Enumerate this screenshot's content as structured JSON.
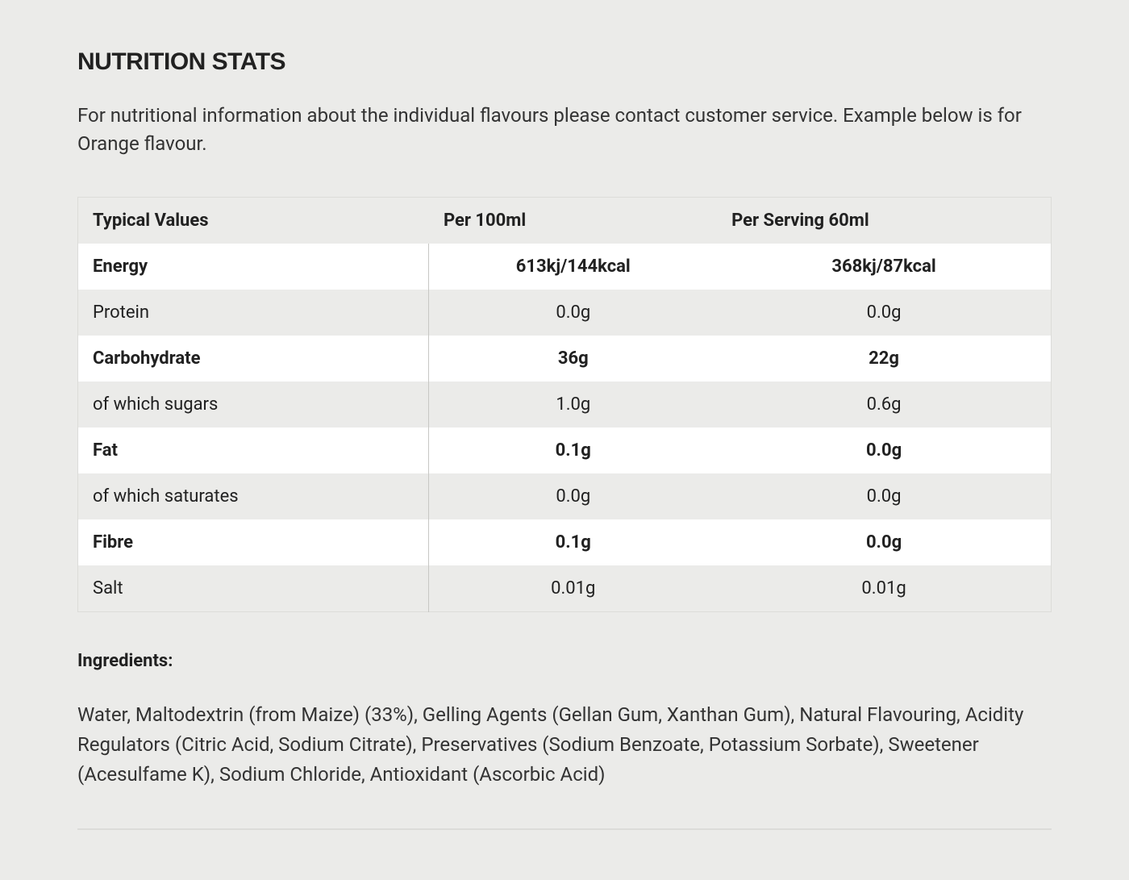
{
  "title": "NUTRITION STATS",
  "intro": "For nutritional information about the individual flavours please contact customer service. Example below is for Orange flavour.",
  "table": {
    "columns": [
      "Typical Values",
      "Per 100ml",
      "Per Serving 60ml"
    ],
    "rows": [
      {
        "label": "Energy",
        "per100": "613kj/144kcal",
        "perServing": "368kj/87kcal",
        "bold": true
      },
      {
        "label": "Protein",
        "per100": "0.0g",
        "perServing": "0.0g",
        "bold": false
      },
      {
        "label": "Carbohydrate",
        "per100": "36g",
        "perServing": "22g",
        "bold": true
      },
      {
        "label": "of which sugars",
        "per100": "1.0g",
        "perServing": "0.6g",
        "bold": false
      },
      {
        "label": "Fat",
        "per100": "0.1g",
        "perServing": "0.0g",
        "bold": true
      },
      {
        "label": "of which saturates",
        "per100": "0.0g",
        "perServing": "0.0g",
        "bold": false
      },
      {
        "label": "Fibre",
        "per100": "0.1g",
        "perServing": "0.0g",
        "bold": true
      },
      {
        "label": "Salt",
        "per100": "0.01g",
        "perServing": "0.01g",
        "bold": false
      }
    ],
    "header_bg": "#ebebe9",
    "row_odd_bg": "#ffffff",
    "row_even_bg": "#ebebe9",
    "border_color": "#dcdcd9",
    "divider_color": "#c7c7c4",
    "font_size": 22
  },
  "ingredients": {
    "label": "Ingredients:",
    "text": "Water, Maltodextrin (from Maize) (33%), Gelling Agents (Gellan Gum, Xanthan Gum), Natural Flavouring, Acidity Regulators (Citric Acid, Sodium Citrate), Preservatives (Sodium Benzoate, Potassium Sorbate), Sweetener (Acesulfame K), Sodium Chloride, Antioxidant (Ascorbic Acid)"
  },
  "colors": {
    "page_bg": "#ebebe9",
    "text": "#212121",
    "muted_text": "#333333"
  }
}
